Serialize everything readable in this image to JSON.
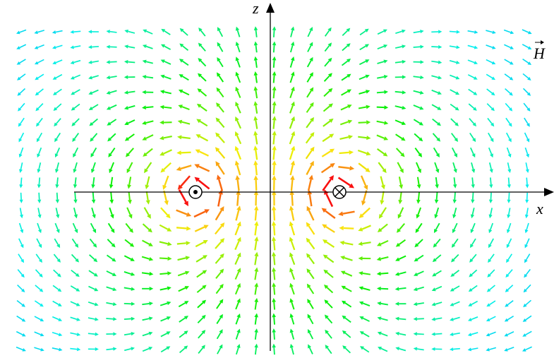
{
  "labels": {
    "z": "z",
    "x": "x",
    "field": "H"
  }
}
